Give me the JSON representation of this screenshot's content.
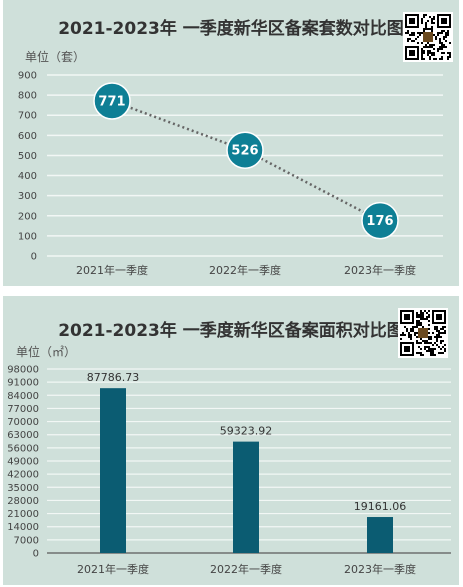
{
  "chart_data": [
    {
      "type": "line",
      "title": "2021-2023年 一季度新华区备案套数对比图",
      "ylabel": "单位（套）",
      "categories": [
        "2021年一季度",
        "2022年一季度",
        "2023年一季度"
      ],
      "values": [
        771,
        526,
        176
      ],
      "yticks": [
        0,
        100,
        200,
        300,
        400,
        500,
        600,
        700,
        800,
        900
      ],
      "ylim": [
        0,
        900
      ],
      "grid": true,
      "line_style": "dotted",
      "colors": {
        "marker": "#0e7f95",
        "line": "#666666",
        "grid": "#f2f7f5"
      }
    },
    {
      "type": "bar",
      "title": "2021-2023年 一季度新华区备案面积对比图",
      "ylabel": "单位（㎡）",
      "categories": [
        "2021年一季度",
        "2022年一季度",
        "2023年一季度"
      ],
      "values": [
        87786.73,
        59323.92,
        19161.06
      ],
      "value_labels": [
        "87786.73",
        "59323.92",
        "19161.06"
      ],
      "yticks": [
        0,
        7000,
        14000,
        21000,
        28000,
        35000,
        42000,
        49000,
        56000,
        63000,
        70000,
        77000,
        84000,
        91000,
        98000
      ],
      "ylim": [
        0,
        98000
      ],
      "grid": true,
      "colors": {
        "bar": "#0b5c72",
        "grid": "#f2f7f5",
        "axis": "#333333"
      }
    }
  ]
}
